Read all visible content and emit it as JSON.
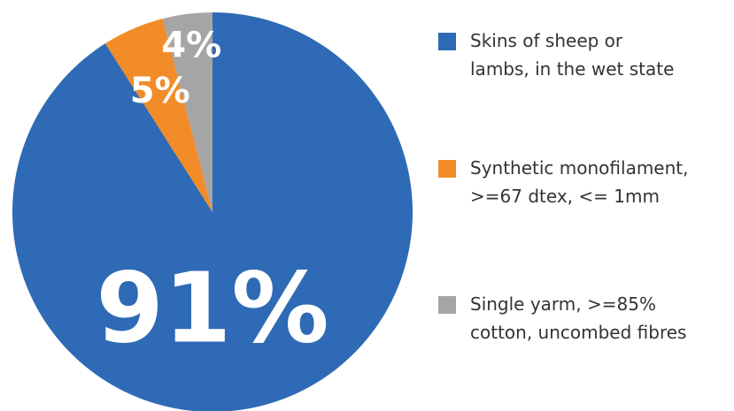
{
  "chart_data": {
    "type": "pie",
    "categories": [
      "Skins of sheep or\nlambs, in the wet state",
      "Synthetic monofilament,\n>=67 dtex, <= 1mm",
      "Single yarm, >=85%\ncotton, uncombed fibres"
    ],
    "values": [
      91,
      5,
      4
    ],
    "value_labels": [
      "91%",
      "5%",
      "4%"
    ],
    "colors": [
      "#2e6ab5",
      "#f28c28",
      "#a5a5a5"
    ],
    "legend": "right"
  }
}
